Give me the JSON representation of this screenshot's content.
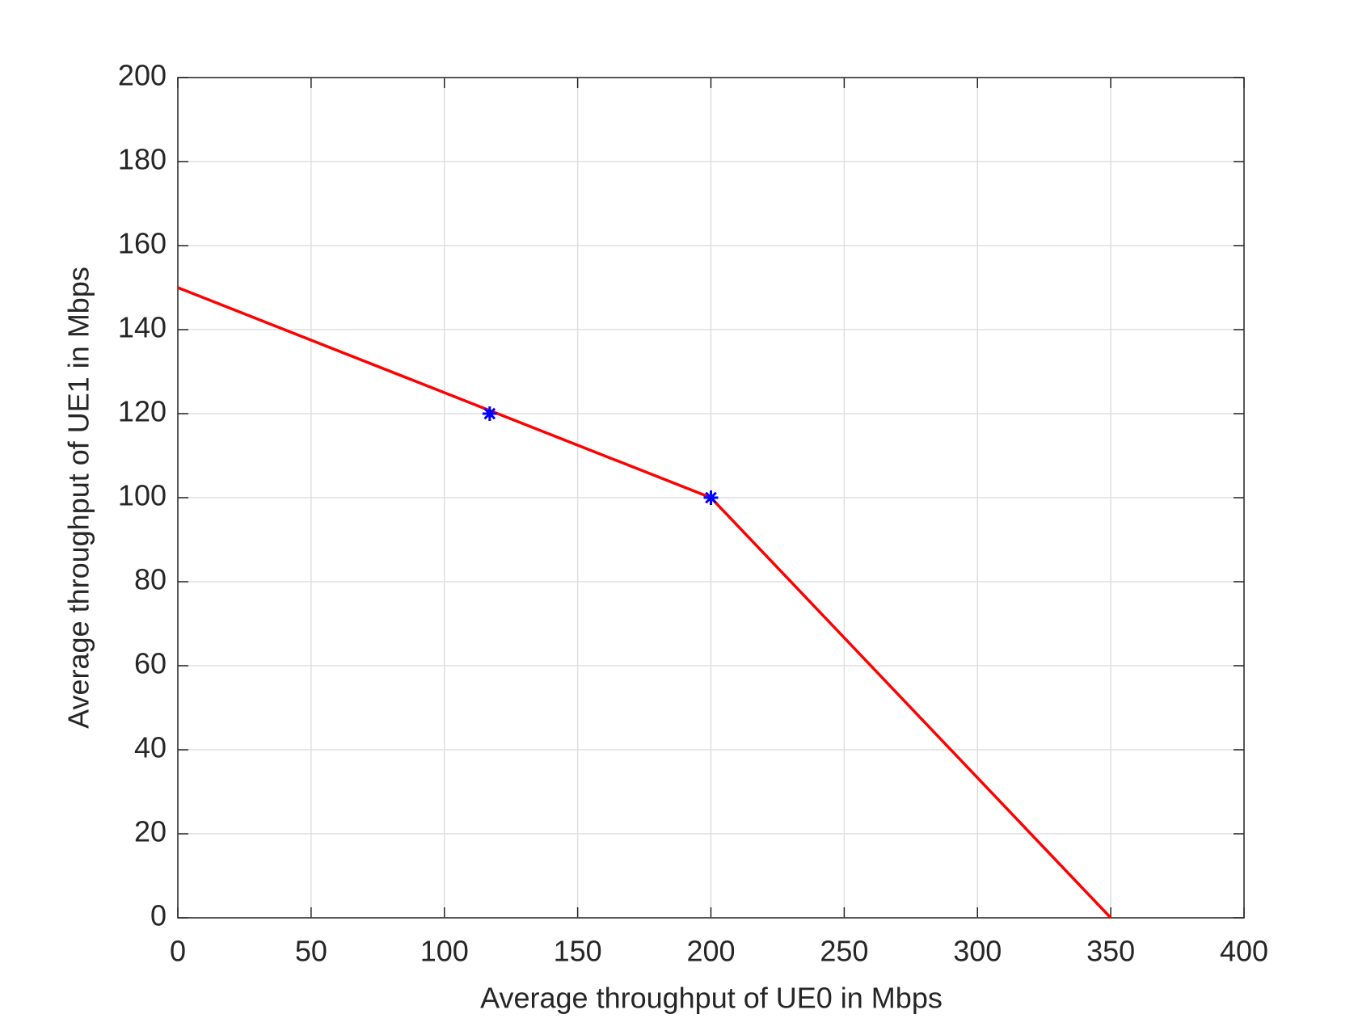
{
  "chart_data": {
    "type": "line",
    "xlabel": "Average throughput of UE0 in Mbps",
    "ylabel": "Average throughput of UE1 in Mbps",
    "xlim": [
      0,
      400
    ],
    "xticks": [
      0,
      50,
      100,
      150,
      200,
      250,
      300,
      350,
      400
    ],
    "ylim": [
      0,
      200
    ],
    "yticks": [
      0,
      20,
      40,
      60,
      80,
      100,
      120,
      140,
      160,
      180,
      200
    ],
    "grid": true,
    "series": [
      {
        "type": "line",
        "color": "#ff0000",
        "x": [
          0,
          200,
          350
        ],
        "values": [
          150,
          100,
          0
        ]
      },
      {
        "type": "scatter",
        "marker": "asterisk",
        "color": "#0000ff",
        "x": [
          117,
          200
        ],
        "values": [
          120,
          100
        ]
      }
    ]
  }
}
